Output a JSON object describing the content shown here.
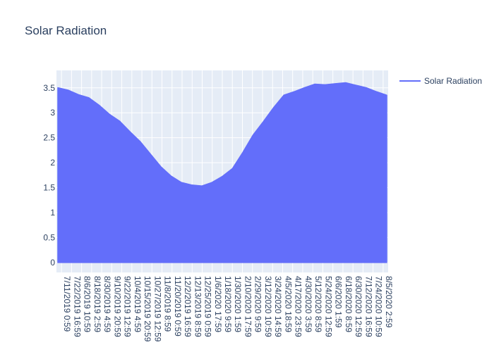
{
  "chart_data": {
    "type": "area",
    "title": "Solar Radiation",
    "xlabel": "",
    "ylabel": "",
    "ylim": [
      -0.2,
      3.85
    ],
    "yticks": [
      0,
      0.5,
      1,
      1.5,
      2,
      2.5,
      3,
      3.5
    ],
    "ytick_labels": [
      "0",
      "0.5",
      "1",
      "1.5",
      "2",
      "2.5",
      "3",
      "3.5"
    ],
    "xtick_labels": [
      "7/11/2019 0:59",
      "7/22/2019 16:59",
      "8/6/2019 10:59",
      "8/18/2019 2:59",
      "8/30/2019 4:59",
      "9/10/2019 20:59",
      "9/22/2019 12:59",
      "10/4/2019 4:59",
      "10/15/2019 20:59",
      "10/27/2019 12:59",
      "11/8/2019 8:59",
      "11/20/2019 0:59",
      "12/2/2019 16:59",
      "12/13/2019 8:59",
      "12/25/2019 0:59",
      "1/6/2020 17:59",
      "1/18/2020 9:59",
      "1/30/2020 1:59",
      "2/10/2020 17:59",
      "2/29/2020 9:59",
      "3/12/2020 10:59",
      "3/24/2020 14:59",
      "4/5/2020 18:59",
      "4/17/2020 23:59",
      "4/30/2020 3:59",
      "5/12/2020 8:59",
      "5/24/2020 12:59",
      "6/6/2020 1:59",
      "6/18/2020 8:59",
      "6/30/2020 12:59",
      "7/12/2020 16:59",
      "7/24/2020 10:59",
      "8/5/2020 2:59"
    ],
    "series": [
      {
        "name": "Solar Radiation",
        "color": "#636efa",
        "fill": "tozeroy",
        "x": [
          "7/11/2019 0:59",
          "7/22/2019 16:59",
          "8/6/2019 10:59",
          "8/18/2019 2:59",
          "8/30/2019 4:59",
          "9/10/2019 20:59",
          "9/22/2019 12:59",
          "10/4/2019 4:59",
          "10/15/2019 20:59",
          "10/27/2019 12:59",
          "11/8/2019 8:59",
          "11/20/2019 0:59",
          "12/2/2019 16:59",
          "12/13/2019 8:59",
          "12/25/2019 0:59",
          "1/6/2020 17:59",
          "1/18/2020 9:59",
          "1/30/2020 1:59",
          "2/10/2020 17:59",
          "2/29/2020 9:59",
          "3/12/2020 10:59",
          "3/24/2020 14:59",
          "4/5/2020 18:59",
          "4/17/2020 23:59",
          "4/30/2020 3:59",
          "5/12/2020 8:59",
          "5/24/2020 12:59",
          "6/6/2020 1:59",
          "6/18/2020 8:59",
          "6/30/2020 12:59",
          "7/12/2020 16:59",
          "7/24/2020 10:59",
          "8/5/2020 2:59"
        ],
        "values": [
          3.5,
          3.45,
          3.36,
          3.3,
          3.15,
          2.97,
          2.83,
          2.62,
          2.42,
          2.17,
          1.92,
          1.73,
          1.6,
          1.55,
          1.53,
          1.6,
          1.72,
          1.88,
          2.2,
          2.55,
          2.82,
          3.1,
          3.35,
          3.42,
          3.5,
          3.57,
          3.56,
          3.58,
          3.6,
          3.55,
          3.5,
          3.42,
          3.35
        ]
      }
    ],
    "legend_position": "top-right"
  }
}
